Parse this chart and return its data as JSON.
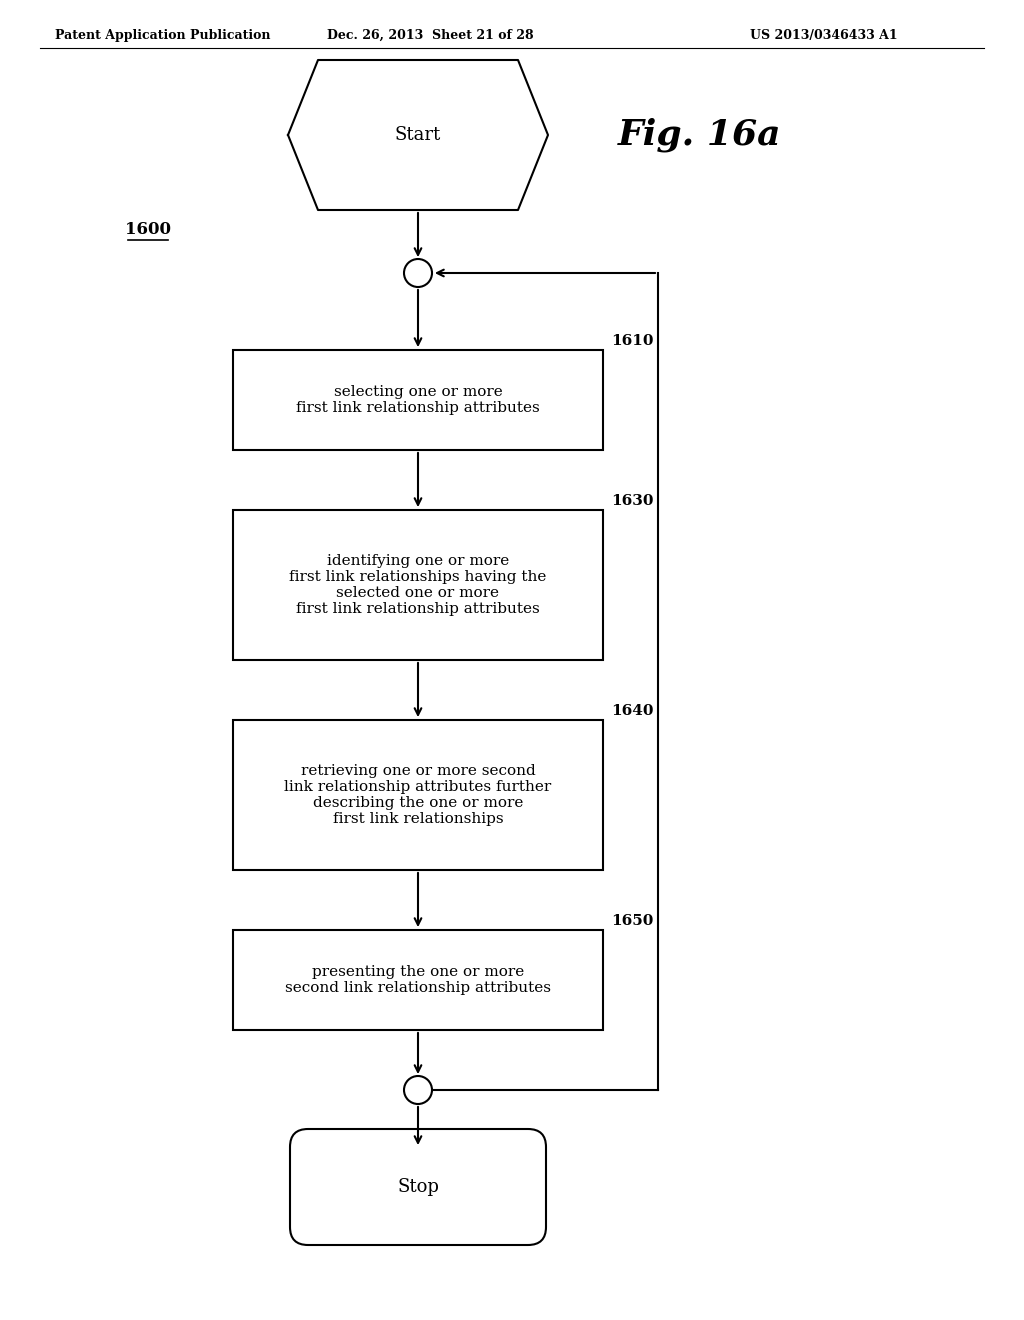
{
  "title": "Fig. 16a",
  "header_left": "Patent Application Publication",
  "header_mid": "Dec. 26, 2013  Sheet 21 of 28",
  "header_right": "US 2013/0346433 A1",
  "diagram_label": "1600",
  "start_label": "Start",
  "stop_label": "Stop",
  "boxes": [
    {
      "label": "selecting one or more\nfirst link relationship attributes",
      "num": "1610"
    },
    {
      "label": "identifying one or more\nfirst link relationships having the\nselected one or more\nfirst link relationship attributes",
      "num": "1630"
    },
    {
      "label": "retrieving one or more second\nlink relationship attributes further\ndescribing the one or more\nfirst link relationships",
      "num": "1640"
    },
    {
      "label": "presenting the one or more\nsecond link relationship attributes",
      "num": "1650"
    }
  ],
  "bg_color": "#ffffff",
  "box_color": "#ffffff",
  "box_edge_color": "#000000",
  "text_color": "#000000",
  "arrow_color": "#000000",
  "line_width": 1.5
}
